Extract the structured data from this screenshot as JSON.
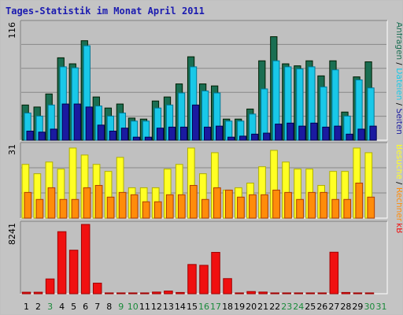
{
  "title": "Tages-Statistik im Monat April 2011",
  "colors": {
    "background": "#c4c4c4",
    "plot_bg": "#c0c0c0",
    "grid": "#888888",
    "title": "#1b1bb0",
    "anfragen": "#1a6e52",
    "dateien": "#19c8e8",
    "seiten": "#1a1aa0",
    "besuche": "#ffff24",
    "rechner": "#ff8c0a",
    "kb": "#f01010",
    "weekday_label": "#000000",
    "weekend_label": "#1a8a3a"
  },
  "chart_data": [
    {
      "type": "bar",
      "name": "Anfragen / Dateien / Seiten",
      "ymax_label": "116",
      "ylim": [
        0,
        116
      ],
      "categories": [
        "1",
        "2",
        "3",
        "4",
        "5",
        "6",
        "7",
        "8",
        "9",
        "10",
        "11",
        "12",
        "13",
        "14",
        "15",
        "16",
        "17",
        "18",
        "19",
        "20",
        "21",
        "22",
        "23",
        "24",
        "25",
        "26",
        "27",
        "28",
        "29",
        "30",
        "31"
      ],
      "series": [
        {
          "name": "Anfragen",
          "values": [
            35,
            33,
            46,
            82,
            76,
            99,
            43,
            32,
            36,
            22,
            21,
            39,
            43,
            56,
            83,
            56,
            54,
            21,
            21,
            31,
            79,
            103,
            76,
            74,
            79,
            64,
            79,
            28,
            63,
            78,
            0
          ]
        },
        {
          "name": "Dateien",
          "values": [
            27,
            24,
            35,
            73,
            72,
            94,
            34,
            24,
            27,
            19,
            19,
            32,
            35,
            47,
            73,
            49,
            47,
            19,
            19,
            26,
            51,
            79,
            73,
            71,
            73,
            53,
            70,
            24,
            60,
            52,
            0
          ]
        },
        {
          "name": "Seiten",
          "values": [
            9,
            8,
            11,
            36,
            36,
            33,
            15,
            9,
            12,
            3,
            3,
            12,
            13,
            13,
            35,
            13,
            14,
            3,
            4,
            6,
            7,
            16,
            17,
            14,
            17,
            13,
            14,
            6,
            11,
            14,
            0
          ]
        }
      ],
      "legend": [
        "Anfragen",
        "Dateien",
        "Seiten"
      ]
    },
    {
      "type": "bar",
      "name": "Besuche / Rechner",
      "ymax_label": "31",
      "ylim": [
        0,
        31
      ],
      "categories": [
        "1",
        "2",
        "3",
        "4",
        "5",
        "6",
        "7",
        "8",
        "9",
        "10",
        "11",
        "12",
        "13",
        "14",
        "15",
        "16",
        "17",
        "18",
        "19",
        "20",
        "21",
        "22",
        "23",
        "24",
        "25",
        "26",
        "27",
        "28",
        "29",
        "30",
        "31"
      ],
      "series": [
        {
          "name": "Besuche",
          "values": [
            23,
            19,
            24,
            21,
            30,
            27,
            23,
            20,
            26,
            13,
            13,
            13,
            21,
            23,
            30,
            19,
            28,
            12,
            13,
            15,
            22,
            29,
            24,
            21,
            21,
            14,
            20,
            20,
            30,
            28,
            0
          ]
        },
        {
          "name": "Rechner",
          "values": [
            11,
            8,
            13,
            8,
            8,
            13,
            14,
            9,
            11,
            10,
            7,
            7,
            10,
            10,
            14,
            8,
            13,
            12,
            9,
            10,
            10,
            12,
            11,
            8,
            11,
            11,
            8,
            8,
            15,
            9,
            0
          ]
        }
      ],
      "legend": [
        "Besuche",
        "Rechner"
      ]
    },
    {
      "type": "bar",
      "name": "kB",
      "ymax_label": "8241",
      "ylim": [
        0,
        8241
      ],
      "categories": [
        "1",
        "2",
        "3",
        "4",
        "5",
        "6",
        "7",
        "8",
        "9",
        "10",
        "11",
        "12",
        "13",
        "14",
        "15",
        "16",
        "17",
        "18",
        "19",
        "20",
        "21",
        "22",
        "23",
        "24",
        "25",
        "26",
        "27",
        "28",
        "29",
        "30",
        "31"
      ],
      "series": [
        {
          "name": "kB",
          "values": [
            180,
            180,
            1760,
            7380,
            5180,
            8241,
            1260,
            100,
            100,
            100,
            100,
            200,
            320,
            150,
            3480,
            3380,
            4920,
            1800,
            100,
            260,
            200,
            100,
            100,
            100,
            100,
            100,
            4940,
            150,
            100,
            100,
            0
          ]
        }
      ],
      "legend": [
        "kB"
      ]
    }
  ],
  "xaxis": {
    "weekend_days": [
      3,
      9,
      10,
      16,
      17,
      23,
      24,
      30,
      31
    ]
  }
}
